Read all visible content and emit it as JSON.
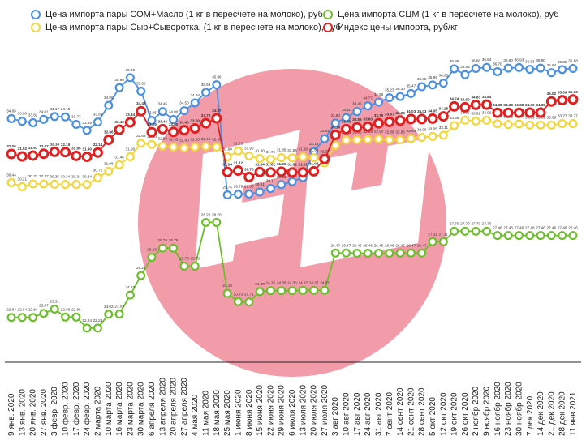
{
  "legend": [
    {
      "label": "Цена импорта пары СОМ+Масло (1 кг в пересчете на молоко), руб",
      "color": "#4a90e2"
    },
    {
      "label": "Цена импорта пары Сыр+Сыворотка, (1 кг в пересчете на молоко), руб",
      "color": "#f2d63a"
    },
    {
      "label": "Цена импорта СЦМ (1 кг в пересчете на молоко), руб",
      "color": "#6cbf2a"
    },
    {
      "label": "Индекс цены импорта, руб/кг",
      "color": "#e02020"
    }
  ],
  "watermark": {
    "color": "#f08a9a"
  },
  "chart_data": {
    "type": "line",
    "x": [
      "9 янв. 2020",
      "13 янв. 2020",
      "20 янв. 2020",
      "27 янв. 2020",
      "3 февр. 2020",
      "10 февр. 2020",
      "17 февр. 2020",
      "24 февр. 2020",
      "2 марта 2020",
      "10 марта 2020",
      "16 марта 2020",
      "23 марта 2020",
      "30 марта 2020",
      "6 апреля 2020",
      "13 апреля 2020",
      "20 апреля 2020",
      "27 апреля 2020",
      "4 мая 2020",
      "11 мая 2020",
      "18 мая 2020",
      "25 мая 2020",
      "1 июня 2020",
      "8 июня 2020",
      "15 июня 2020",
      "22 июня 2020",
      "29 июня 2020",
      "6 июля 2020",
      "13 июля 2020",
      "20 июля 2020",
      "27 июля 2020",
      "3 авг 2020",
      "10 авг 2020",
      "17 авг 2020",
      "24 авг 2020",
      "31 авг 2020",
      "7 сент 2020",
      "14 сент 2020",
      "21 сент 2020",
      "28 сент 2020",
      "5 окт 2020",
      "12 окт 2020",
      "19 окт 2020",
      "26 окт 2020",
      "2 ноябр 2020",
      "9 ноябр 2020",
      "16 ноябр 2020",
      "23 ноябр 2020",
      "30 ноябр 2020",
      "7 дек 2020",
      "14 дек 2020",
      "21 дек 2020",
      "28 дек 2020",
      "11 янв 2021"
    ],
    "series": [
      {
        "name": "Цена импорта пары СОМ+Масло (1 кг в пересчете на молоко), руб",
        "color": "#4a90e2",
        "values": [
          34.05,
          33.9,
          33.82,
          34.01,
          34.17,
          34.15,
          33.73,
          33.39,
          33.86,
          34.8,
          35.8,
          36.36,
          35.6,
          33.95,
          34.45,
          34.0,
          34.5,
          34.94,
          35.53,
          35.96,
          29.75,
          29.79,
          29.8,
          29.91,
          30.11,
          30.33,
          30.5,
          30.73,
          32.19,
          32.92,
          33.8,
          34.11,
          34.45,
          34.77,
          34.98,
          35.23,
          35.3,
          35.47,
          35.85,
          35.95,
          36.05,
          36.86,
          36.53,
          36.88,
          36.94,
          36.7,
          36.9,
          36.93,
          36.83,
          36.9,
          36.64,
          36.82,
          36.88
        ]
      },
      {
        "name": "Цена импорта пары Сыр+Сыворотка, (1 кг в пересчете на молоко), руб",
        "color": "#f2d63a",
        "values": [
          30.44,
          30.21,
          30.37,
          30.37,
          30.35,
          30.34,
          30.34,
          30.34,
          30.72,
          31.08,
          31.45,
          31.9,
          32.66,
          32.6,
          32.5,
          32.45,
          32.4,
          32.45,
          32.48,
          32.45,
          31.9,
          32.23,
          31.95,
          31.8,
          31.75,
          31.85,
          31.84,
          31.9,
          31.85,
          31.55,
          32.54,
          32.84,
          32.85,
          32.88,
          32.9,
          32.86,
          32.86,
          32.93,
          32.99,
          33.05,
          33.11,
          33.66,
          33.96,
          33.91,
          33.96,
          33.76,
          33.72,
          33.75,
          33.69,
          33.69,
          33.69,
          33.77,
          33.77
        ]
      },
      {
        "name": "Цена импорта СЦМ (1 кг в пересчете на молоко), руб",
        "color": "#6cbf2a",
        "values": [
          22.84,
          22.84,
          22.84,
          23.07,
          23.31,
          22.86,
          22.86,
          22.24,
          22.24,
          23.02,
          23.03,
          24.1,
          25.2,
          26.23,
          26.75,
          26.75,
          25.73,
          25.73,
          28.2,
          28.2,
          24.19,
          23.73,
          23.71,
          24.3,
          24.35,
          24.35,
          24.35,
          24.37,
          24.37,
          24.37,
          26.47,
          26.47,
          26.46,
          26.46,
          26.46,
          26.46,
          26.47,
          26.47,
          26.47,
          27.11,
          27.11,
          27.7,
          27.7,
          27.7,
          27.7,
          27.46,
          27.46,
          27.46,
          27.46,
          27.46,
          27.46,
          27.46,
          27.46
        ]
      },
      {
        "name": "Индекс цены импорта, руб/кг",
        "color": "#e02020",
        "values": [
          32.06,
          31.92,
          31.97,
          32.07,
          32.18,
          32.16,
          31.95,
          31.9,
          32.14,
          32.86,
          33.43,
          33.84,
          34.47,
          33.29,
          33.46,
          33.3,
          33.4,
          33.5,
          33.79,
          34.07,
          31.04,
          31.12,
          30.76,
          31.04,
          31.02,
          31.06,
          31.02,
          31.02,
          31.08,
          31.77,
          33.14,
          33.46,
          33.56,
          33.6,
          33.79,
          33.87,
          33.94,
          34.03,
          34.03,
          34.05,
          34.18,
          34.74,
          34.69,
          34.83,
          34.84,
          34.38,
          34.38,
          34.38,
          34.39,
          34.39,
          35.02,
          35.09,
          35.13
        ]
      }
    ],
    "ylim": [
      21.0,
      38.0
    ],
    "grid": false,
    "legend_position": "top"
  }
}
